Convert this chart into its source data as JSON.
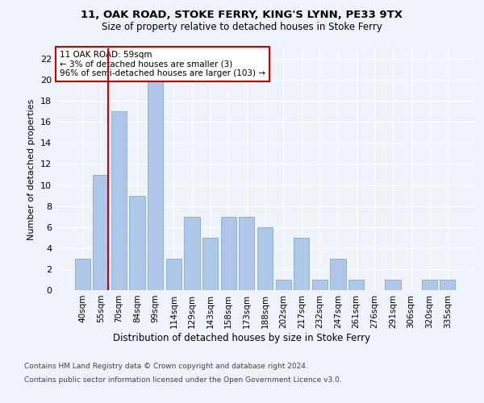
{
  "title1": "11, OAK ROAD, STOKE FERRY, KING'S LYNN, PE33 9TX",
  "title2": "Size of property relative to detached houses in Stoke Ferry",
  "xlabel": "Distribution of detached houses by size in Stoke Ferry",
  "ylabel": "Number of detached properties",
  "categories": [
    "40sqm",
    "55sqm",
    "70sqm",
    "84sqm",
    "99sqm",
    "114sqm",
    "129sqm",
    "143sqm",
    "158sqm",
    "173sqm",
    "188sqm",
    "202sqm",
    "217sqm",
    "232sqm",
    "247sqm",
    "261sqm",
    "276sqm",
    "291sqm",
    "306sqm",
    "320sqm",
    "335sqm"
  ],
  "values": [
    3,
    11,
    17,
    9,
    20,
    3,
    7,
    5,
    7,
    7,
    6,
    1,
    5,
    1,
    3,
    1,
    0,
    1,
    0,
    1,
    1
  ],
  "bar_color": "#aec6e8",
  "bar_edge_color": "#8ab4d8",
  "vline_x_index": 1,
  "annotation_text1": "11 OAK ROAD: 59sqm",
  "annotation_text2": "← 3% of detached houses are smaller (3)",
  "annotation_text3": "96% of semi-detached houses are larger (103) →",
  "annotation_box_color": "#ffffff",
  "annotation_box_edge_color": "#cc0000",
  "vline_color": "#cc0000",
  "ylim": [
    0,
    23
  ],
  "yticks": [
    0,
    2,
    4,
    6,
    8,
    10,
    12,
    14,
    16,
    18,
    20,
    22
  ],
  "footer1": "Contains HM Land Registry data © Crown copyright and database right 2024.",
  "footer2": "Contains public sector information licensed under the Open Government Licence v3.0.",
  "bg_color": "#eef2f9",
  "plot_bg_color": "#eef2f9"
}
